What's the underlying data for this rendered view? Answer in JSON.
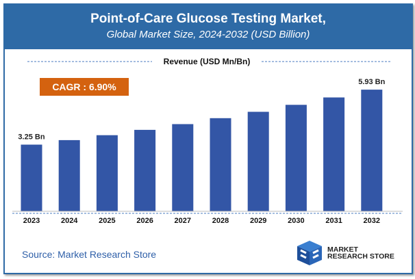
{
  "header": {
    "title": "Point-of-Care Glucose Testing Market,",
    "subtitle": "Global Market Size, 2024-2032 (USD Billion)"
  },
  "cagr_label": "CAGR : 6.90%",
  "source": "Source: Market Research Store",
  "logo": {
    "line1": "MARKET",
    "line2": "RESEARCH STORE"
  },
  "colors": {
    "header": "#2e6aa6",
    "bar": "#3356a6",
    "cagr": "#d4620f"
  },
  "chart_data": {
    "type": "bar",
    "title": "Revenue (USD Mn/Bn)",
    "categories": [
      "2023",
      "2024",
      "2025",
      "2026",
      "2027",
      "2028",
      "2029",
      "2030",
      "2031",
      "2032"
    ],
    "values": [
      3.25,
      3.47,
      3.71,
      3.97,
      4.25,
      4.54,
      4.85,
      5.19,
      5.55,
      5.93
    ],
    "data_labels": {
      "0": "3.25 Bn",
      "9": "5.93 Bn"
    },
    "ylim": [
      0,
      6.5
    ],
    "grid": false
  }
}
